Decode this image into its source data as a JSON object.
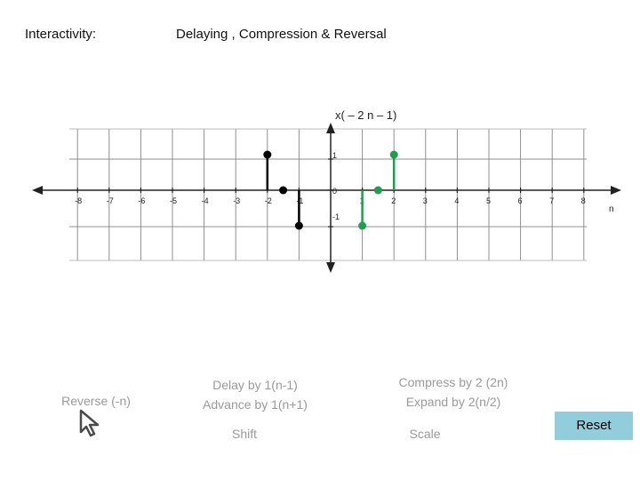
{
  "header": {
    "left_label": "Interactivity:",
    "title": "Delaying , Compression & Reversal"
  },
  "controls": {
    "reverse": "Reverse (-n)",
    "delay_line1": "Delay by 1(n-1)",
    "delay_line2": "Advance by 1(n+1)",
    "shift": "Shift",
    "compress_line1": "Compress by 2 (2n)",
    "expand_line2": "Expand by 2(n/2)",
    "scale": "Scale",
    "reset": "Reset"
  },
  "chart_data": {
    "type": "stem",
    "title": "x( – 2 n – 1)",
    "xlabel": "n",
    "ylabel": "",
    "x_ticks": [
      -8,
      -7,
      -6,
      -5,
      -4,
      -3,
      -2,
      -1,
      1,
      2,
      3,
      4,
      5,
      6,
      7,
      8
    ],
    "y_tick_labels": [
      "1",
      "0",
      "-1"
    ],
    "xlim": [
      -9,
      9
    ],
    "ylim": [
      -1,
      1
    ],
    "grid": true,
    "series": [
      {
        "color": "#000000",
        "points": [
          [
            -2,
            1
          ],
          [
            -1.5,
            0
          ],
          [
            -1,
            -1
          ]
        ]
      },
      {
        "color": "#1e9e4e",
        "points": [
          [
            1,
            -1
          ],
          [
            1.5,
            0
          ],
          [
            2,
            1
          ]
        ]
      }
    ],
    "colors": {
      "black_series": "#000000",
      "green_series": "#1e9e4e",
      "grid": "#8f8f8f"
    }
  },
  "icons": {
    "cursor": "arrow-cursor-icon"
  }
}
